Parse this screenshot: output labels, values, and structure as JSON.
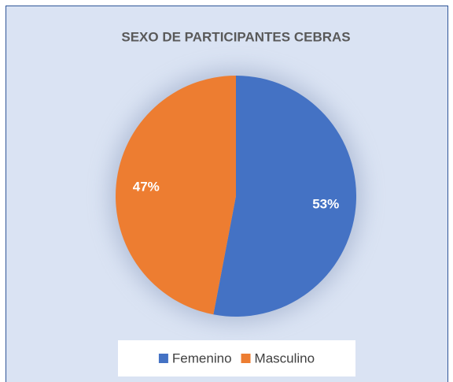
{
  "chart_data": {
    "type": "pie",
    "title": "SEXO DE PARTICIPANTES CEBRAS",
    "categories": [
      "Femenino",
      "Masculino"
    ],
    "values": [
      53,
      47
    ],
    "value_labels": [
      "53%",
      "47%"
    ],
    "colors": [
      "#4472c4",
      "#ed7d31"
    ],
    "legend": "bottom"
  }
}
